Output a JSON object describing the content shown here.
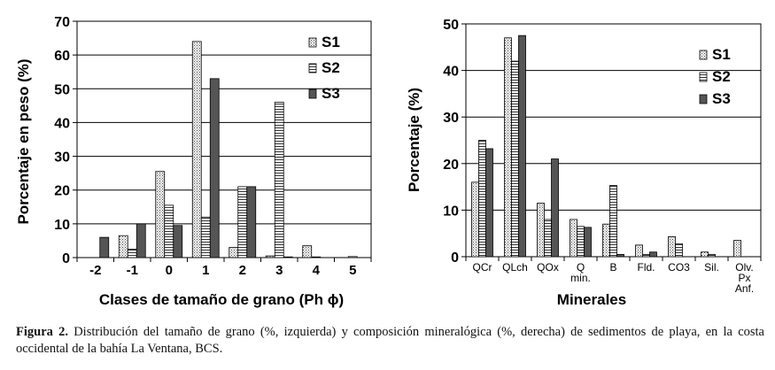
{
  "chart_data": [
    {
      "type": "bar",
      "title": "",
      "xlabel": "Clases de tamaño de grano (Ph ϕ)",
      "ylabel": "Porcentaje en peso (%)",
      "ylim": [
        0,
        70
      ],
      "yticks": [
        0,
        10,
        20,
        30,
        40,
        50,
        60,
        70
      ],
      "categories": [
        "-2",
        "-1",
        "0",
        "1",
        "2",
        "3",
        "4",
        "5"
      ],
      "grid": "horizontal",
      "legend_position": "top-right",
      "series": [
        {
          "name": "S1",
          "pattern": "dotted",
          "values": [
            0,
            6.5,
            25.5,
            64,
            3,
            0.5,
            3.5,
            0
          ]
        },
        {
          "name": "S2",
          "pattern": "striped",
          "values": [
            0,
            2.5,
            15.5,
            12,
            21,
            46,
            0.2,
            0.3
          ]
        },
        {
          "name": "S3",
          "pattern": "solid",
          "values": [
            6,
            10,
            9.5,
            53,
            21,
            0.2,
            0,
            0
          ]
        }
      ]
    },
    {
      "type": "bar",
      "title": "",
      "xlabel": "Minerales",
      "ylabel": "Porcentaje (%)",
      "ylim": [
        0,
        50
      ],
      "yticks": [
        0,
        10,
        20,
        30,
        40,
        50
      ],
      "categories": [
        "QCr",
        "QLch",
        "QOx",
        "Q min.",
        "B",
        "Fld.",
        "CO3",
        "Sil.",
        "Olv. Px Anf."
      ],
      "grid": "horizontal",
      "legend_position": "top-right",
      "series": [
        {
          "name": "S1",
          "pattern": "dotted",
          "values": [
            16,
            47,
            11.5,
            8,
            7,
            2.5,
            4.3,
            1,
            3.5
          ]
        },
        {
          "name": "S2",
          "pattern": "striped",
          "values": [
            25,
            42,
            8,
            6.5,
            15.3,
            0.5,
            2.8,
            0.5,
            0
          ]
        },
        {
          "name": "S3",
          "pattern": "solid",
          "values": [
            23.2,
            47.5,
            21,
            6.3,
            0.5,
            1,
            0,
            0,
            0
          ]
        }
      ]
    }
  ],
  "caption": {
    "label": "Figura 2.",
    "text": " Distribución del tamaño de grano (%, izquierda) y composición mineralógica (%, derecha) de sedimentos de playa, en la costa occidental de la bahía La Ventana, BCS."
  },
  "colors": {
    "axis": "#000000",
    "s3_fill": "#555555",
    "grid": "#000000"
  }
}
